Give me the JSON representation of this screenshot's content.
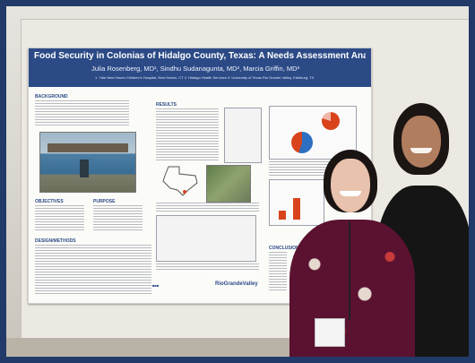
{
  "poster": {
    "title": "Food Security in Colonias of Hidalgo County, Texas: A Needs Assessment Analysis",
    "authors": "Julia Rosenberg, MD¹, Sindhu Sudanagunta, MD², Marcia Griffin, MD³",
    "affiliations": "1. Yale New Haven Children's Hospital, New Haven, CT  2. Hidalgo Health Services  3. University of Texas Rio Grande Valley, Edinburg, TX",
    "sections": {
      "background": "BACKGROUND",
      "results": "RESULTS",
      "objectives": "OBJECTIVES",
      "purpose": "PURPOSE",
      "design_methods": "DESIGN/METHODS",
      "conclusions": "CONCLUSIONS"
    },
    "logo_right": "RioGrandeValley"
  },
  "colors": {
    "frame": "#223a6a",
    "poster_header": "#2b4a86",
    "pie_red": "#d9431c",
    "pie_blue": "#2e6fc1"
  }
}
